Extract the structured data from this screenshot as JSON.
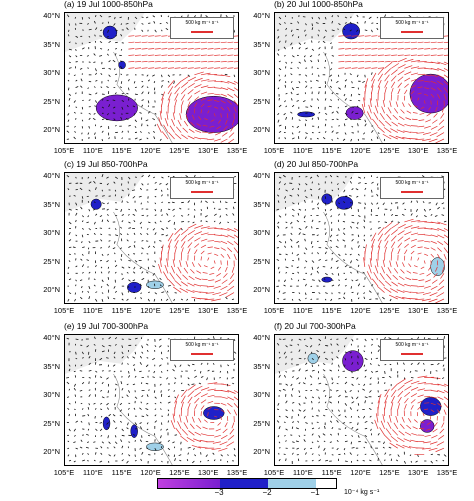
{
  "panels": [
    {
      "title": "(a) 19 Jul 1000-850hPa",
      "ref_label": "500 kg m⁻¹ s⁻¹"
    },
    {
      "title": "(b) 20 Jul 1000-850hPa",
      "ref_label": "500 kg m⁻¹ s⁻¹"
    },
    {
      "title": "(c) 19 Jul 850-700hPa",
      "ref_label": "500 kg m⁻¹ s⁻¹"
    },
    {
      "title": "(d) 20 Jul 850-700hPa",
      "ref_label": "500 kg m⁻¹ s⁻¹"
    },
    {
      "title": "(e) 19 Jul 700-300hPa",
      "ref_label": "500 kg m⁻¹ s⁻¹"
    },
    {
      "title": "(f) 20 Jul 700-300hPa",
      "ref_label": "500 kg m⁻¹ s⁻¹"
    }
  ],
  "lat_labels": [
    "40°N",
    "35°N",
    "30°N",
    "25°N",
    "20°N"
  ],
  "lon_labels": [
    "105°E",
    "110°E",
    "115°E",
    "120°E",
    "125°E",
    "130°E",
    "135°E"
  ],
  "colorbar": {
    "ticks": [
      "−3",
      "−2",
      "−1"
    ],
    "unit": "10⁻⁴ kg s⁻¹",
    "colors": [
      "#7a1fd0",
      "#2020c8",
      "#9fd0e8"
    ]
  },
  "colors": {
    "vector_red": "#e03030",
    "vector_black": "#111111",
    "land_gray": "#ececec"
  }
}
